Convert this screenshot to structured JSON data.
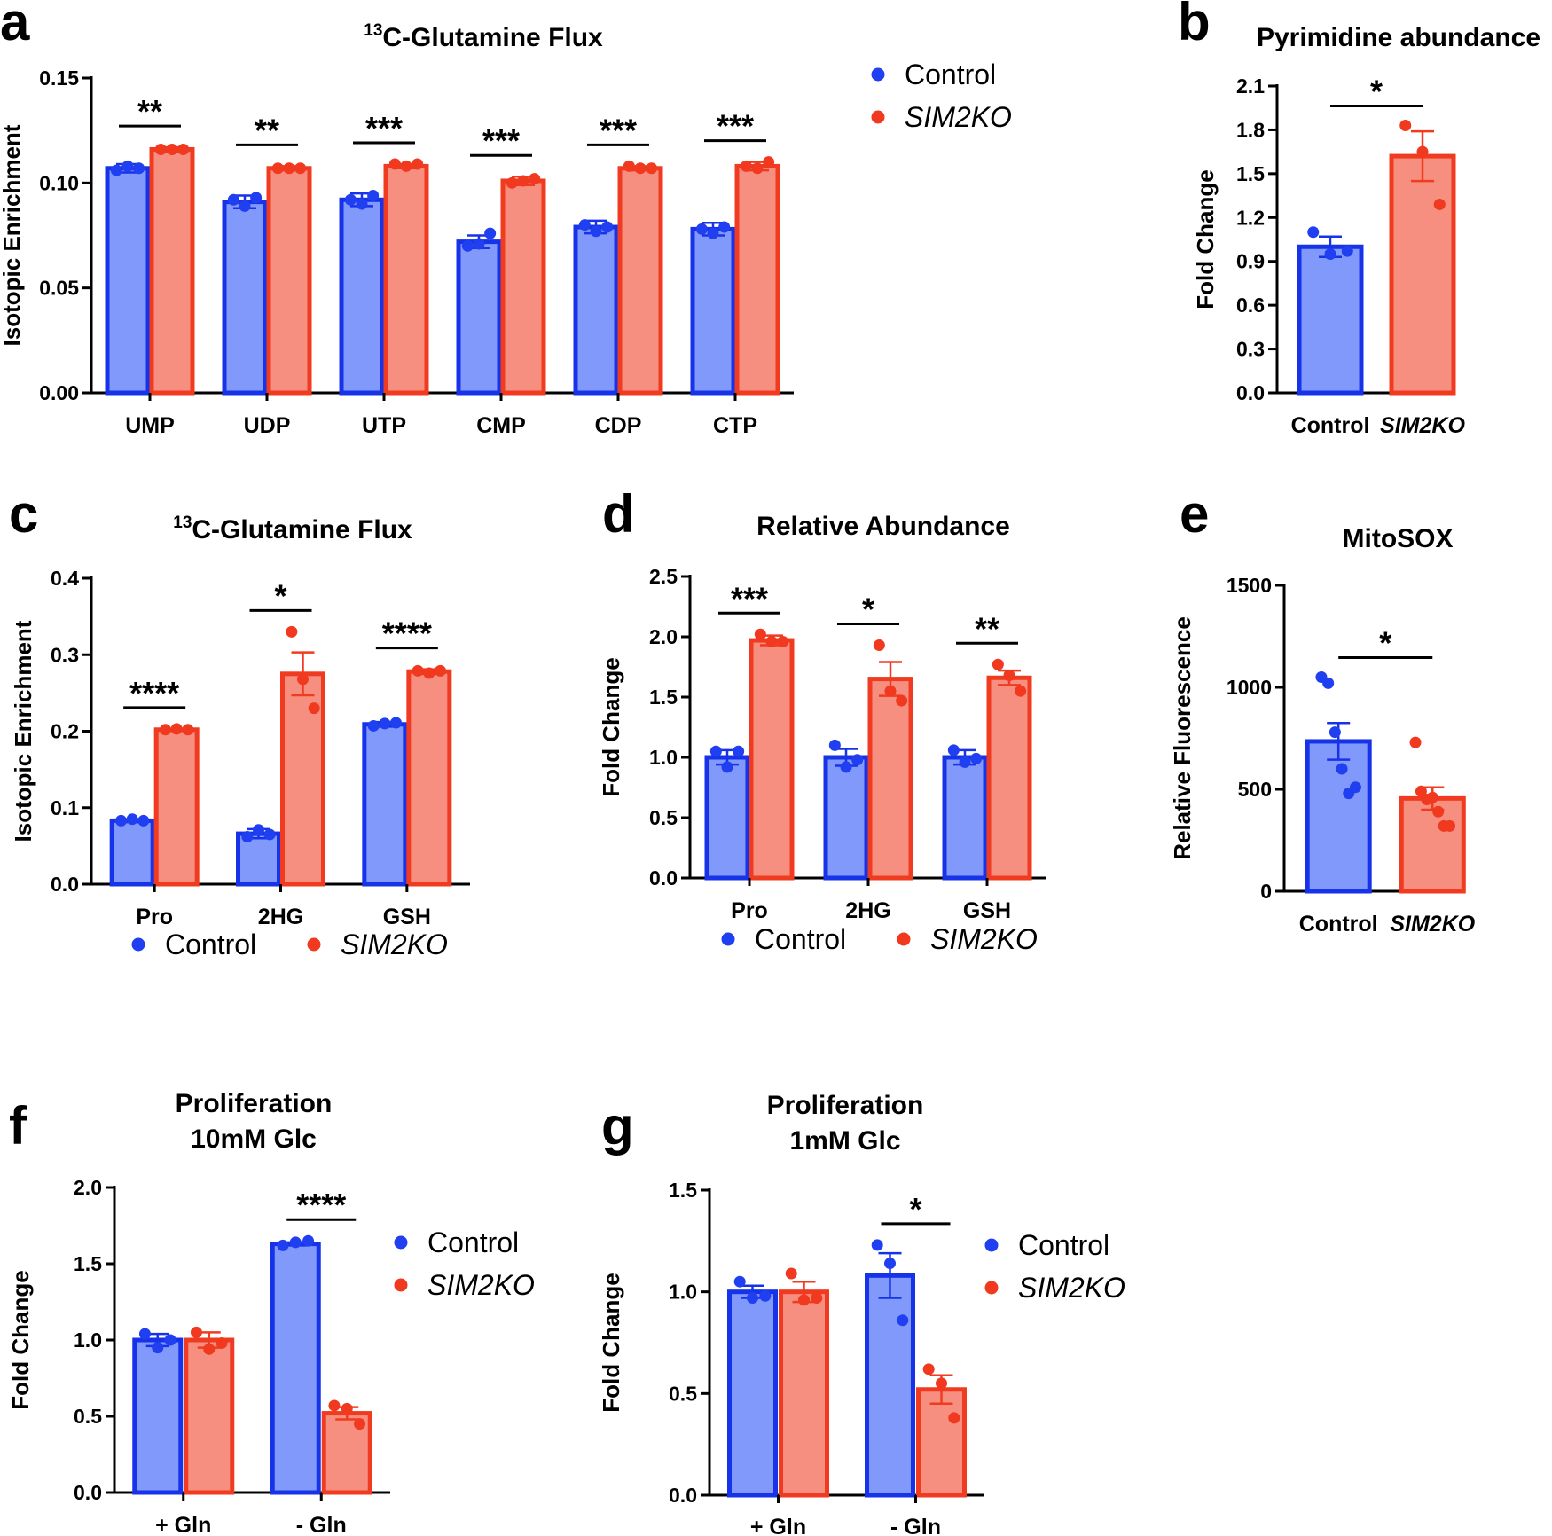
{
  "colors": {
    "control_fill": "#8199FA",
    "control_stroke": "#1733EA",
    "control_dot": "#1F3FF0",
    "ko_fill": "#F78F80",
    "ko_stroke": "#F03B20",
    "ko_dot": "#F0391E"
  },
  "chart_data": [
    {
      "id": "a",
      "panel": "a",
      "type": "bar",
      "title": "13C-Glutamine Flux",
      "title_sup": "13",
      "title_main": "C-Glutamine Flux",
      "ylabel": "Isotopic Enrichment",
      "ylim": [
        0,
        0.15
      ],
      "yticks": [
        0,
        0.05,
        0.1,
        0.15
      ],
      "ytick_labels": [
        "0.00",
        "0.05",
        "0.10",
        "0.15"
      ],
      "categories": [
        "UMP",
        "UDP",
        "UTP",
        "CMP",
        "CDP",
        "CTP"
      ],
      "series": [
        {
          "name": "Control",
          "values": [
            0.107,
            0.091,
            0.092,
            0.072,
            0.079,
            0.078
          ],
          "errors": [
            0.002,
            0.003,
            0.003,
            0.003,
            0.003,
            0.003
          ],
          "points": [
            [
              0.106,
              0.108,
              0.107
            ],
            [
              0.092,
              0.089,
              0.093
            ],
            [
              0.092,
              0.09,
              0.094
            ],
            [
              0.07,
              0.071,
              0.076
            ],
            [
              0.08,
              0.077,
              0.079
            ],
            [
              0.078,
              0.076,
              0.079
            ]
          ]
        },
        {
          "name": "SIM2KO",
          "values": [
            0.116,
            0.107,
            0.108,
            0.101,
            0.107,
            0.108
          ],
          "errors": [
            0.001,
            0.001,
            0.001,
            0.002,
            0.001,
            0.002
          ],
          "points": [
            [
              0.116,
              0.116,
              0.116
            ],
            [
              0.107,
              0.107,
              0.107
            ],
            [
              0.109,
              0.108,
              0.109
            ],
            [
              0.1,
              0.101,
              0.102
            ],
            [
              0.108,
              0.107,
              0.107
            ],
            [
              0.108,
              0.107,
              0.11
            ]
          ]
        }
      ],
      "significance": [
        "**",
        "**",
        "***",
        "***",
        "***",
        "***"
      ],
      "legend": [
        "Control",
        "SIM2KO"
      ]
    },
    {
      "id": "b",
      "panel": "b",
      "type": "bar",
      "title": "Pyrimidine abundance",
      "ylabel": "Fold Change",
      "ylim": [
        0,
        2.1
      ],
      "yticks": [
        0,
        0.3,
        0.6,
        0.9,
        1.2,
        1.5,
        1.8,
        2.1
      ],
      "ytick_labels": [
        "0.0",
        "0.3",
        "0.6",
        "0.9",
        "1.2",
        "1.5",
        "1.8",
        "2.1"
      ],
      "categories": [
        "Control",
        "SIM2KO"
      ],
      "values": [
        1.0,
        1.62
      ],
      "errors": [
        0.07,
        0.17
      ],
      "points": [
        [
          1.1,
          0.95,
          0.97
        ],
        [
          1.83,
          1.65,
          1.29
        ]
      ],
      "significance": [
        "*"
      ]
    },
    {
      "id": "c",
      "panel": "c",
      "type": "bar",
      "title": "13C-Glutamine Flux",
      "title_sup": "13",
      "title_main": "C-Glutamine Flux",
      "ylabel": "Isotopic Enrichment",
      "ylim": [
        0,
        0.4
      ],
      "yticks": [
        0,
        0.1,
        0.2,
        0.3,
        0.4
      ],
      "ytick_labels": [
        "0.0",
        "0.1",
        "0.2",
        "0.3",
        "0.4"
      ],
      "categories": [
        "Pro",
        "2HG",
        "GSH"
      ],
      "series": [
        {
          "name": "Control",
          "values": [
            0.083,
            0.066,
            0.209
          ],
          "errors": [
            0.002,
            0.006,
            0.003
          ],
          "points": [
            [
              0.083,
              0.085,
              0.083
            ],
            [
              0.062,
              0.071,
              0.065
            ],
            [
              0.207,
              0.21,
              0.211
            ]
          ]
        },
        {
          "name": "SIM2KO",
          "values": [
            0.202,
            0.275,
            0.278
          ],
          "errors": [
            0.001,
            0.028,
            0.003
          ],
          "points": [
            [
              0.202,
              0.203,
              0.202
            ],
            [
              0.33,
              0.268,
              0.23
            ],
            [
              0.279,
              0.276,
              0.279
            ]
          ]
        }
      ],
      "significance": [
        "****",
        "*",
        "****"
      ],
      "legend": [
        "Control",
        "SIM2KO"
      ]
    },
    {
      "id": "d",
      "panel": "d",
      "type": "bar",
      "title": "Relative Abundance",
      "ylabel": "Fold Change",
      "ylim": [
        0,
        2.5
      ],
      "yticks": [
        0,
        0.5,
        1.0,
        1.5,
        2.0,
        2.5
      ],
      "ytick_labels": [
        "0.0",
        "0.5",
        "1.0",
        "1.5",
        "2.0",
        "2.5"
      ],
      "categories": [
        "Pro",
        "2HG",
        "GSH"
      ],
      "series": [
        {
          "name": "Control",
          "values": [
            1.0,
            1.0,
            1.0
          ],
          "errors": [
            0.06,
            0.07,
            0.06
          ],
          "points": [
            [
              1.05,
              0.92,
              1.05
            ],
            [
              1.1,
              0.92,
              0.98
            ],
            [
              1.06,
              0.96,
              0.99
            ]
          ]
        },
        {
          "name": "SIM2KO",
          "values": [
            1.97,
            1.65,
            1.66
          ],
          "errors": [
            0.04,
            0.14,
            0.06
          ],
          "points": [
            [
              2.02,
              1.96,
              1.96
            ],
            [
              1.93,
              1.55,
              1.47
            ],
            [
              1.77,
              1.68,
              1.55
            ]
          ]
        }
      ],
      "significance": [
        "***",
        "*",
        "**"
      ],
      "legend": [
        "Control",
        "SIM2KO"
      ]
    },
    {
      "id": "e",
      "panel": "e",
      "type": "bar",
      "title": "MitoSOX",
      "ylabel": "Relative Fluorescence",
      "ylim": [
        0,
        1500
      ],
      "yticks": [
        0,
        500,
        1000,
        1500
      ],
      "ytick_labels": [
        "0",
        "500",
        "1000",
        "1500"
      ],
      "categories": [
        "Control",
        "SIM2KO"
      ],
      "values": [
        735,
        455
      ],
      "errors": [
        90,
        55
      ],
      "points": [
        [
          1050,
          1020,
          780,
          600,
          480,
          510
        ],
        [
          730,
          490,
          450,
          460,
          390,
          320,
          320
        ]
      ],
      "significance": [
        "*"
      ]
    },
    {
      "id": "f",
      "panel": "f",
      "type": "bar",
      "title": "Proliferation 10mM Glc",
      "title_line1": "Proliferation",
      "title_line2": "10mM Glc",
      "ylabel": "Fold Change",
      "ylim": [
        0,
        2.0
      ],
      "yticks": [
        0,
        0.5,
        1.0,
        1.5,
        2.0
      ],
      "ytick_labels": [
        "0.0",
        "0.5",
        "1.0",
        "1.5",
        "2.0"
      ],
      "categories": [
        "+ Gln",
        "- Gln"
      ],
      "series": [
        {
          "name": "Control",
          "values": [
            1.0,
            1.63
          ],
          "errors": [
            0.04,
            0.01
          ],
          "points": [
            [
              1.04,
              0.95,
              1.0
            ],
            [
              1.62,
              1.64,
              1.65
            ]
          ]
        },
        {
          "name": "SIM2KO",
          "values": [
            1.0,
            0.52
          ],
          "errors": [
            0.05,
            0.04
          ],
          "points": [
            [
              1.05,
              0.94,
              0.98
            ],
            [
              0.57,
              0.55,
              0.45
            ]
          ]
        }
      ],
      "significance": [
        null,
        "****"
      ],
      "legend": [
        "Control",
        "SIM2KO"
      ]
    },
    {
      "id": "g",
      "panel": "g",
      "type": "bar",
      "title": "Proliferation 1mM Glc",
      "title_line1": "Proliferation",
      "title_line2": "1mM Glc",
      "ylabel": "Fold Change",
      "ylim": [
        0,
        1.5
      ],
      "yticks": [
        0,
        0.5,
        1.0,
        1.5
      ],
      "ytick_labels": [
        "0.0",
        "0.5",
        "1.0",
        "1.5"
      ],
      "categories": [
        "+ Gln",
        "- Gln"
      ],
      "series": [
        {
          "name": "Control",
          "values": [
            1.0,
            1.08
          ],
          "errors": [
            0.03,
            0.11
          ],
          "points": [
            [
              1.05,
              0.97,
              0.98
            ],
            [
              1.23,
              1.14,
              0.86
            ]
          ]
        },
        {
          "name": "SIM2KO",
          "values": [
            1.0,
            0.52
          ],
          "errors": [
            0.05,
            0.07
          ],
          "points": [
            [
              1.09,
              0.96,
              0.97
            ],
            [
              0.62,
              0.55,
              0.38
            ]
          ]
        }
      ],
      "significance": [
        null,
        "*"
      ],
      "legend": [
        "Control",
        "SIM2KO"
      ]
    }
  ]
}
